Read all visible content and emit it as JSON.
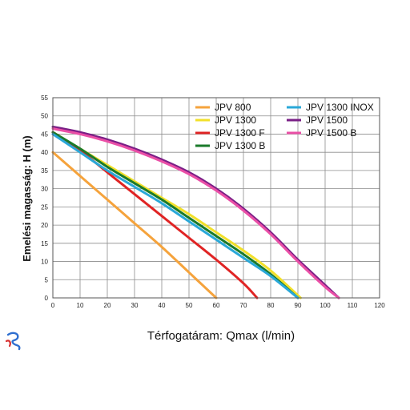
{
  "chart_data": {
    "type": "line",
    "xlabel": "Térfogatáram: Qmax (l/min)",
    "ylabel": "Emelési magasság: H (m)",
    "xlim": [
      0,
      120
    ],
    "ylim": [
      0,
      55
    ],
    "xticks": [
      0,
      10,
      20,
      30,
      40,
      50,
      60,
      70,
      80,
      90,
      100,
      110,
      120
    ],
    "yticks": [
      0,
      5,
      10,
      15,
      20,
      25,
      30,
      35,
      40,
      45,
      50,
      55
    ],
    "grid": true,
    "legend_position": "top-right",
    "series": [
      {
        "name": "JPV 800",
        "color": "#f5a33c",
        "x": [
          0,
          10,
          20,
          30,
          40,
          50,
          60
        ],
        "y": [
          40,
          33.5,
          27,
          20.5,
          14,
          7,
          0
        ]
      },
      {
        "name": "JPV 1300",
        "color": "#f2e02a",
        "x": [
          0,
          10,
          20,
          30,
          40,
          50,
          60,
          70,
          80,
          91
        ],
        "y": [
          45.5,
          41,
          36.5,
          32,
          27.5,
          23,
          18,
          13,
          7.5,
          0
        ]
      },
      {
        "name": "JPV 1300 F",
        "color": "#e02424",
        "x": [
          0,
          10,
          20,
          30,
          40,
          50,
          60,
          70,
          75
        ],
        "y": [
          45.5,
          40.5,
          34.5,
          28.5,
          22.5,
          16.5,
          10.5,
          4,
          0
        ]
      },
      {
        "name": "JPV 1300 B",
        "color": "#1a7a2a",
        "x": [
          0,
          10,
          20,
          30,
          40,
          50,
          60,
          70,
          80,
          90
        ],
        "y": [
          45.5,
          41,
          36,
          31.5,
          27,
          22,
          17,
          12,
          6.5,
          0
        ]
      },
      {
        "name": "JPV 1300 INOX",
        "color": "#2aa8d8",
        "x": [
          0,
          10,
          20,
          30,
          40,
          50,
          60,
          70,
          80,
          90
        ],
        "y": [
          45,
          40,
          35,
          30.5,
          26,
          21,
          16,
          11,
          6,
          0
        ]
      },
      {
        "name": "JPV 1500",
        "color": "#7a1f86",
        "x": [
          0,
          10,
          20,
          30,
          40,
          50,
          60,
          70,
          80,
          90,
          100,
          105
        ],
        "y": [
          47,
          45.5,
          43.5,
          41,
          38,
          34.5,
          30,
          24.5,
          18,
          10.5,
          3.5,
          0
        ]
      },
      {
        "name": "JPV 1500 B",
        "color": "#ea4fa6",
        "x": [
          0,
          10,
          20,
          30,
          40,
          50,
          60,
          70,
          80,
          90,
          100,
          105
        ],
        "y": [
          46.5,
          45,
          43,
          40.5,
          37.5,
          34,
          29.5,
          24,
          17.5,
          10,
          3,
          0
        ]
      }
    ]
  }
}
